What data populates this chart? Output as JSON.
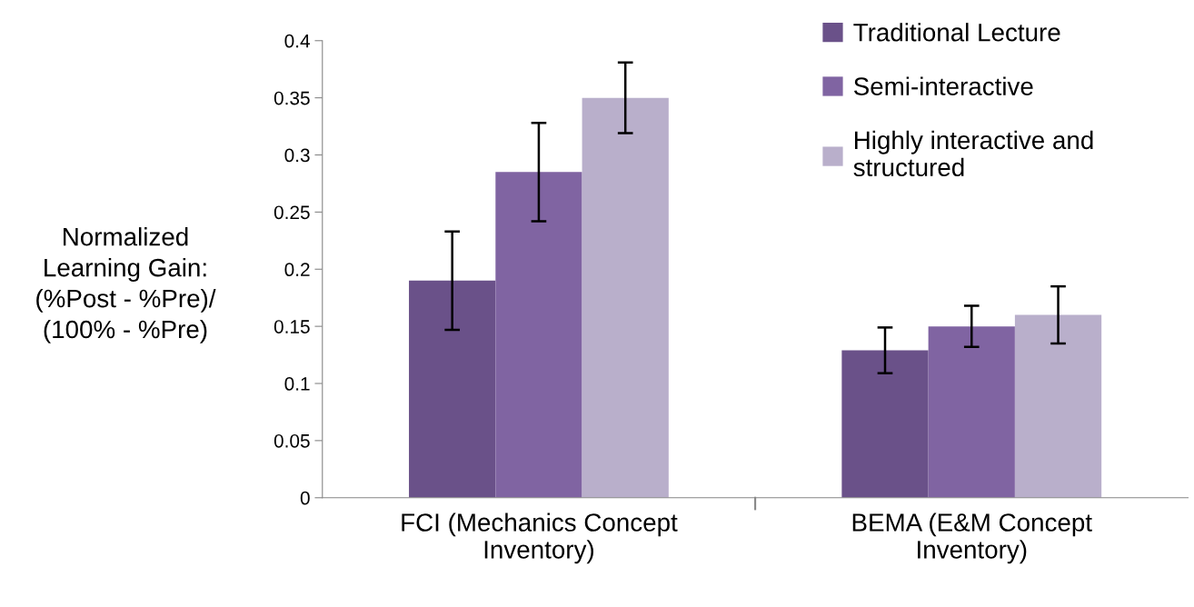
{
  "chart_data": {
    "type": "bar",
    "ylabel": "Normalized\nLearning Gain:\n(%Post - %Pre)/\n(100% - %Pre)",
    "categories": [
      "FCI (Mechanics Concept\nInventory)",
      "BEMA (E&M Concept\nInventory)"
    ],
    "series": [
      {
        "name": "Traditional Lecture",
        "color": "#6a5189",
        "values": [
          0.19,
          0.129
        ],
        "errors": [
          0.043,
          0.02
        ]
      },
      {
        "name": "Semi-interactive",
        "color": "#8064a2",
        "values": [
          0.285,
          0.15
        ],
        "errors": [
          0.043,
          0.018
        ]
      },
      {
        "name": "Highly interactive and\nstructured",
        "color": "#b9afcb",
        "values": [
          0.35,
          0.16
        ],
        "errors": [
          0.031,
          0.025
        ]
      }
    ],
    "ylim": [
      0,
      0.4
    ],
    "yticks": [
      0,
      0.05,
      0.1,
      0.15,
      0.2,
      0.25,
      0.3,
      0.35,
      0.4
    ],
    "grid": false,
    "legend": "top right"
  }
}
